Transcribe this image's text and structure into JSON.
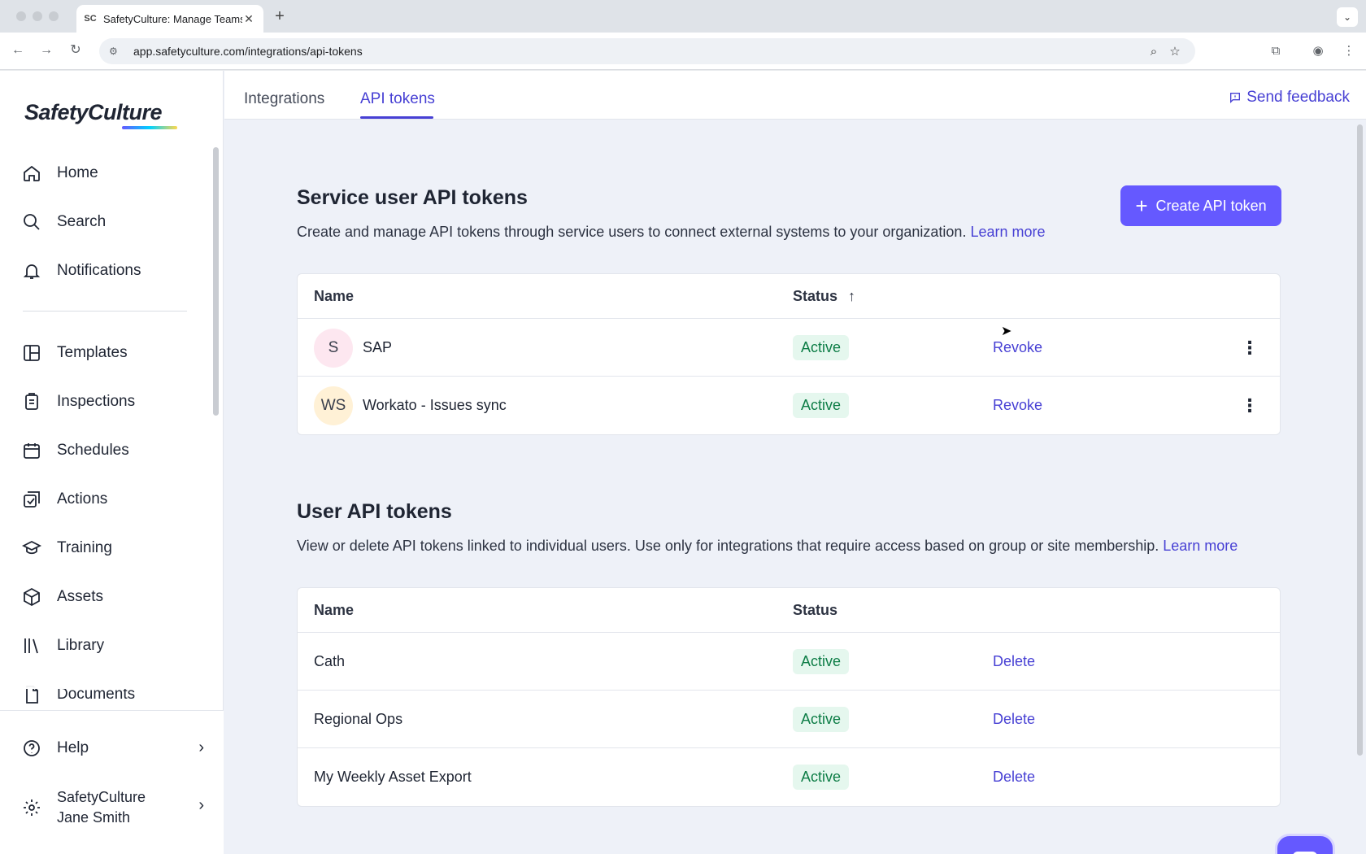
{
  "browser": {
    "tab_title": "SafetyCulture: Manage Teams",
    "url": "app.safetyculture.com/integrations/api-tokens"
  },
  "sidebar": {
    "logo": "SafetyCulture",
    "items": [
      {
        "label": "Home",
        "icon": "home-icon"
      },
      {
        "label": "Search",
        "icon": "search-icon"
      },
      {
        "label": "Notifications",
        "icon": "bell-icon"
      },
      {
        "label": "Templates",
        "icon": "templates-icon"
      },
      {
        "label": "Inspections",
        "icon": "clipboard-icon"
      },
      {
        "label": "Schedules",
        "icon": "calendar-icon"
      },
      {
        "label": "Actions",
        "icon": "actions-icon"
      },
      {
        "label": "Training",
        "icon": "graduation-cap-icon"
      },
      {
        "label": "Assets",
        "icon": "cube-icon"
      },
      {
        "label": "Library",
        "icon": "library-icon"
      },
      {
        "label": "Documents",
        "icon": "document-icon"
      }
    ],
    "help_label": "Help",
    "org_name": "SafetyCulture",
    "user_name": "Jane Smith"
  },
  "topbar": {
    "tabs": [
      {
        "label": "Integrations",
        "active": false
      },
      {
        "label": "API tokens",
        "active": true
      }
    ],
    "feedback_label": "Send feedback"
  },
  "service_section": {
    "title": "Service user API tokens",
    "description": "Create and manage API tokens through service users to connect external systems to your organization.",
    "learn_more": "Learn more",
    "create_button": "Create API token",
    "columns": {
      "name": "Name",
      "status": "Status",
      "sort_indicator": "↑"
    },
    "rows": [
      {
        "initials": "S",
        "name": "SAP",
        "status": "Active",
        "action": "Revoke",
        "avatar_color": "#fde7f0"
      },
      {
        "initials": "WS",
        "name": "Workato - Issues sync",
        "status": "Active",
        "action": "Revoke",
        "avatar_color": "#fff1d6"
      }
    ]
  },
  "user_section": {
    "title": "User API tokens",
    "description": "View or delete API tokens linked to individual users. Use only for integrations that require access based on group or site membership.",
    "learn_more": "Learn more",
    "columns": {
      "name": "Name",
      "status": "Status"
    },
    "rows": [
      {
        "name": "Cath",
        "status": "Active",
        "action": "Delete"
      },
      {
        "name": "Regional Ops",
        "status": "Active",
        "action": "Delete"
      },
      {
        "name": "My Weekly Asset Export",
        "status": "Active",
        "action": "Delete"
      }
    ]
  },
  "colors": {
    "accent": "#4740d4",
    "button": "#6559ff",
    "active_badge_bg": "#e5f7ee",
    "active_badge_text": "#0d7d46"
  }
}
